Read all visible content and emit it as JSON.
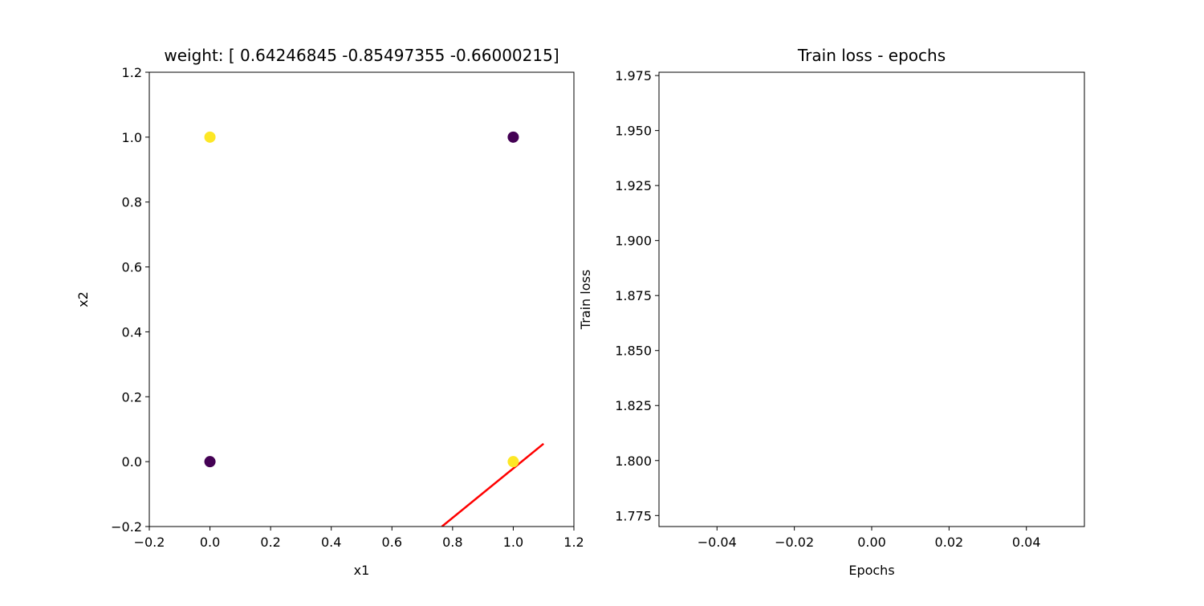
{
  "chart_data": [
    {
      "type": "scatter",
      "title": "weight: [ 0.64246845 -0.85497355 -0.66000215]",
      "xlabel": "x1",
      "ylabel": "x2",
      "xlim": [
        -0.2,
        1.2
      ],
      "ylim": [
        -0.2,
        1.2
      ],
      "xticks": [
        -0.2,
        0.0,
        0.2,
        0.4,
        0.6,
        0.8,
        1.0,
        1.2
      ],
      "xtick_labels": [
        "−0.2",
        "0.0",
        "0.2",
        "0.4",
        "0.6",
        "0.8",
        "1.0",
        "1.2"
      ],
      "yticks": [
        -0.2,
        0.0,
        0.2,
        0.4,
        0.6,
        0.8,
        1.0,
        1.2
      ],
      "ytick_labels": [
        "−0.2",
        "0.0",
        "0.2",
        "0.4",
        "0.6",
        "0.8",
        "1.0",
        "1.2"
      ],
      "points": [
        {
          "x": 0,
          "y": 1,
          "class": 1
        },
        {
          "x": 1,
          "y": 1,
          "class": 0
        },
        {
          "x": 0,
          "y": 0,
          "class": 0
        },
        {
          "x": 1,
          "y": 0,
          "class": 1
        }
      ],
      "class_colors": {
        "0": "#440154",
        "1": "#fde725"
      },
      "decision_line": {
        "x": [
          0.7647,
          1.1
        ],
        "y": [
          -0.2,
          0.0552
        ],
        "color": "#ff0000"
      },
      "grid": false
    },
    {
      "type": "line",
      "title": "Train loss - epochs",
      "xlabel": "Epochs",
      "ylabel": "Train loss",
      "xlim": [
        -0.055,
        0.055
      ],
      "ylim": [
        1.77,
        1.9765
      ],
      "xticks": [
        -0.04,
        -0.02,
        0.0,
        0.02,
        0.04
      ],
      "xtick_labels": [
        "−0.04",
        "−0.02",
        "0.00",
        "0.02",
        "0.04"
      ],
      "yticks": [
        1.775,
        1.8,
        1.825,
        1.85,
        1.875,
        1.9,
        1.925,
        1.95,
        1.975
      ],
      "ytick_labels": [
        "1.775",
        "1.800",
        "1.825",
        "1.850",
        "1.875",
        "1.900",
        "1.925",
        "1.950",
        "1.975"
      ],
      "series": [
        {
          "values": []
        }
      ],
      "grid": false
    }
  ]
}
